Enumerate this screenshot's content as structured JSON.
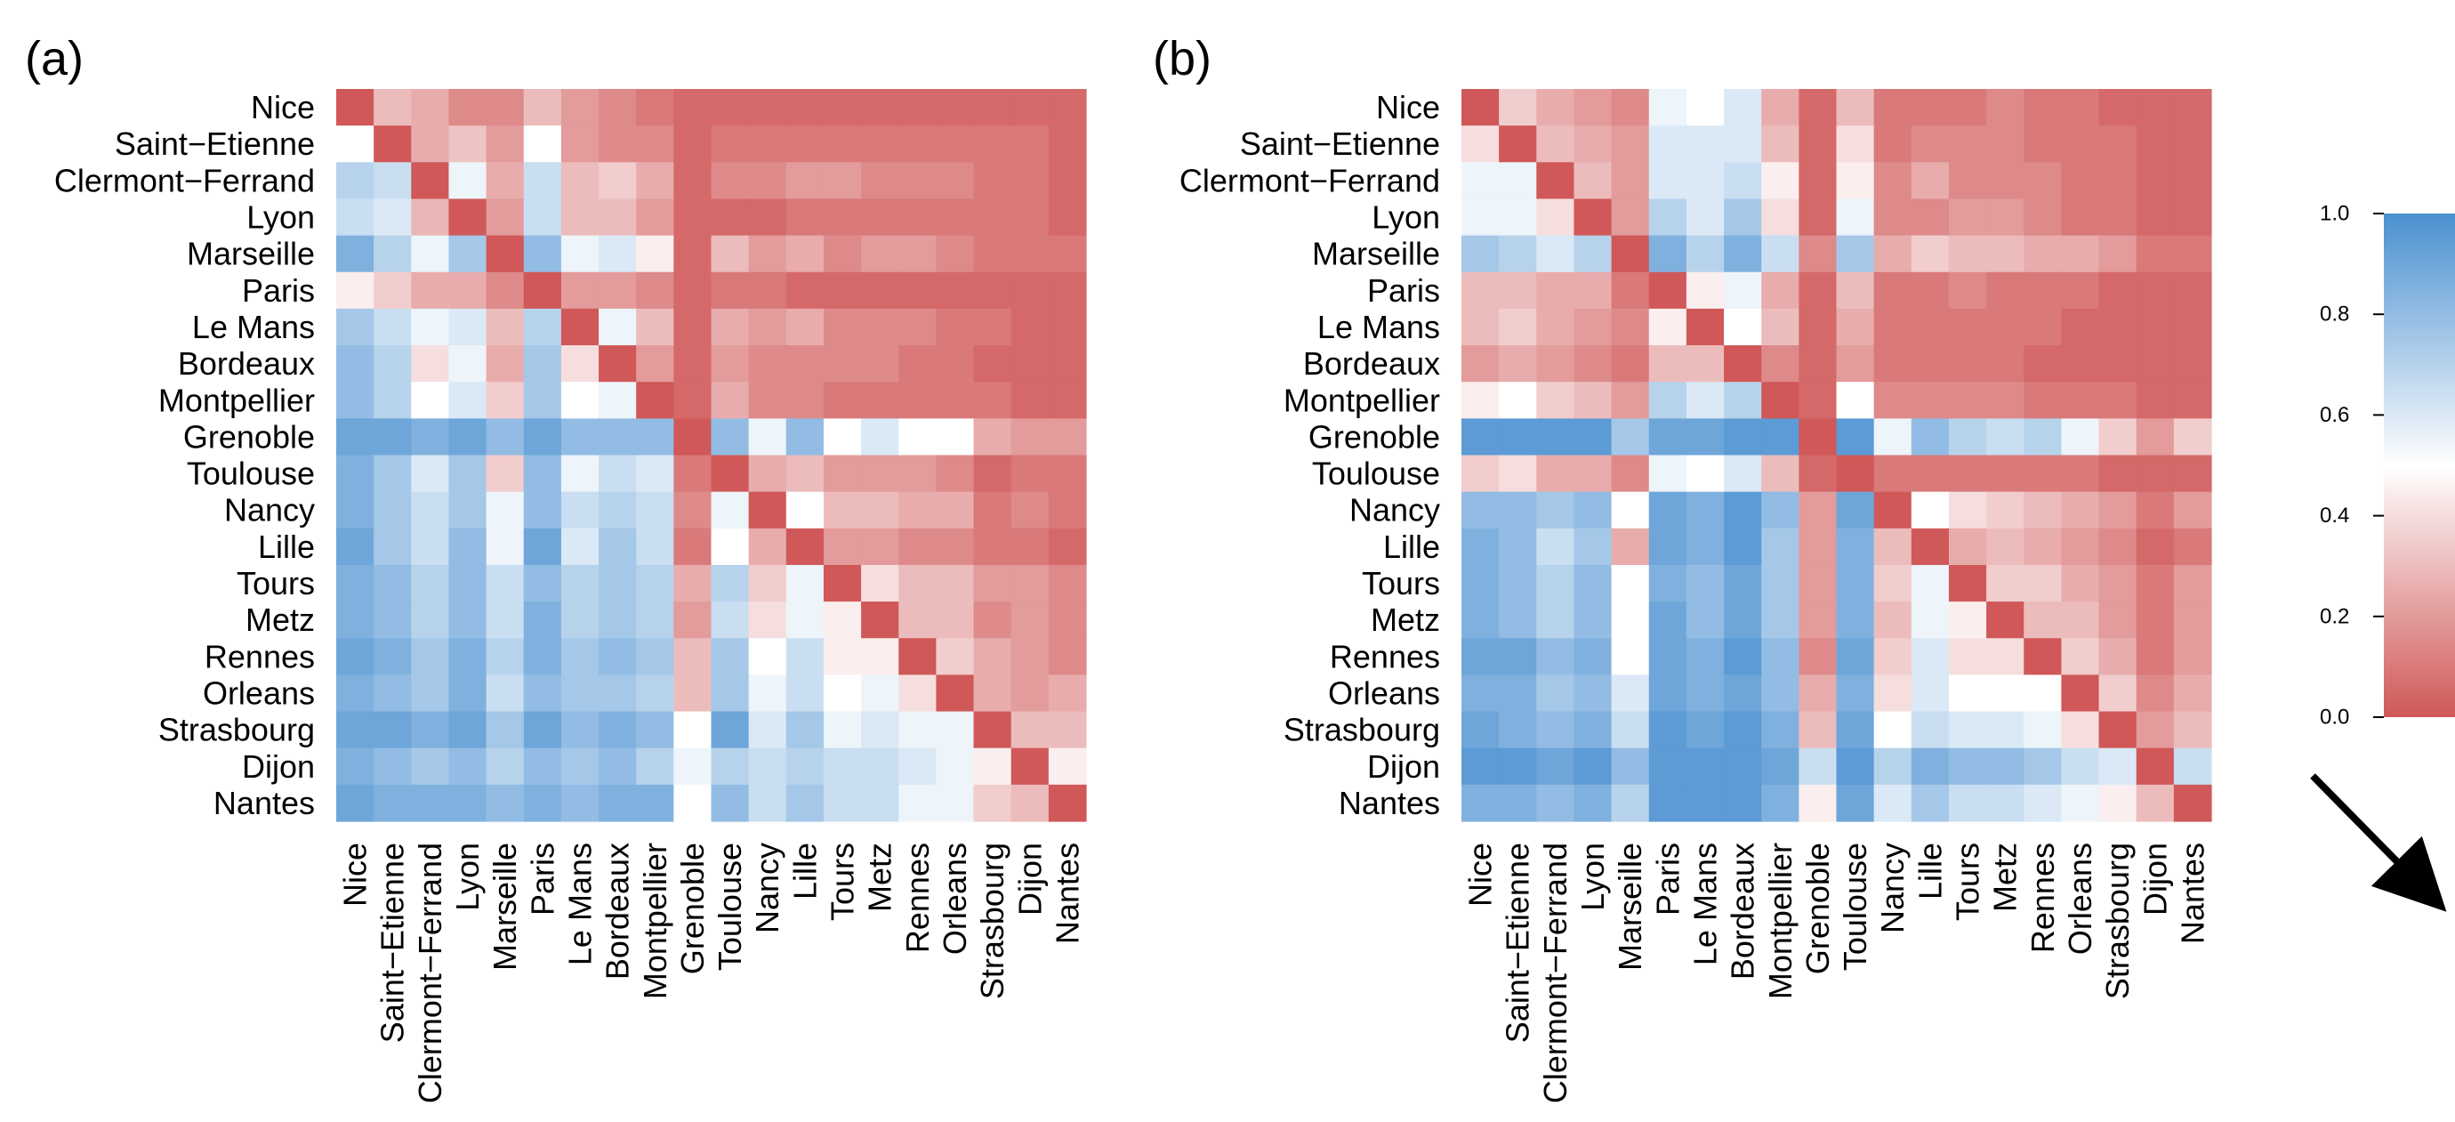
{
  "panels": [
    {
      "label": "(a)"
    },
    {
      "label": "(b)"
    }
  ],
  "colorbar": {
    "ticks": [
      "1.0",
      "0.8",
      "0.6",
      "0.4",
      "0.2",
      "0.0"
    ],
    "colors": {
      "high": "#4a90d0",
      "mid": "#ffffff",
      "low": "#d05858"
    }
  },
  "chart_data": [
    {
      "type": "heatmap",
      "title": "",
      "labels": [
        "Nice",
        "Saint−Etienne",
        "Clermont−Ferrand",
        "Lyon",
        "Marseille",
        "Paris",
        "Le Mans",
        "Bordeaux",
        "Montpellier",
        "Grenoble",
        "Toulouse",
        "Nancy",
        "Lille",
        "Tours",
        "Metz",
        "Rennes",
        "Orleans",
        "Strasbourg",
        "Dijon",
        "Nantes"
      ],
      "zlim": [
        0,
        1
      ],
      "values": [
        [
          0.0,
          0.3,
          0.25,
          0.15,
          0.15,
          0.3,
          0.2,
          0.15,
          0.1,
          0.05,
          0.05,
          0.05,
          0.05,
          0.05,
          0.05,
          0.05,
          0.05,
          0.05,
          0.05,
          0.05
        ],
        [
          0.5,
          0.0,
          0.25,
          0.32,
          0.2,
          0.5,
          0.2,
          0.15,
          0.15,
          0.05,
          0.1,
          0.1,
          0.1,
          0.1,
          0.1,
          0.1,
          0.1,
          0.1,
          0.1,
          0.05
        ],
        [
          0.7,
          0.65,
          0.0,
          0.55,
          0.25,
          0.65,
          0.3,
          0.35,
          0.25,
          0.05,
          0.15,
          0.15,
          0.2,
          0.2,
          0.15,
          0.15,
          0.15,
          0.1,
          0.1,
          0.05
        ],
        [
          0.65,
          0.6,
          0.28,
          0.0,
          0.2,
          0.65,
          0.3,
          0.3,
          0.2,
          0.05,
          0.05,
          0.05,
          0.1,
          0.1,
          0.1,
          0.1,
          0.1,
          0.1,
          0.1,
          0.05
        ],
        [
          0.85,
          0.7,
          0.55,
          0.75,
          0.0,
          0.8,
          0.55,
          0.6,
          0.45,
          0.05,
          0.3,
          0.2,
          0.25,
          0.15,
          0.2,
          0.2,
          0.15,
          0.1,
          0.1,
          0.1
        ],
        [
          0.45,
          0.35,
          0.25,
          0.25,
          0.15,
          0.0,
          0.2,
          0.2,
          0.15,
          0.05,
          0.1,
          0.1,
          0.05,
          0.05,
          0.05,
          0.05,
          0.05,
          0.05,
          0.05,
          0.05
        ],
        [
          0.75,
          0.65,
          0.55,
          0.6,
          0.3,
          0.7,
          0.0,
          0.55,
          0.3,
          0.05,
          0.25,
          0.2,
          0.25,
          0.15,
          0.15,
          0.15,
          0.1,
          0.1,
          0.05,
          0.05
        ],
        [
          0.8,
          0.7,
          0.4,
          0.55,
          0.25,
          0.75,
          0.4,
          0.0,
          0.2,
          0.05,
          0.2,
          0.15,
          0.15,
          0.15,
          0.15,
          0.1,
          0.1,
          0.05,
          0.05,
          0.05
        ],
        [
          0.8,
          0.7,
          0.5,
          0.6,
          0.35,
          0.75,
          0.5,
          0.55,
          0.0,
          0.05,
          0.25,
          0.15,
          0.15,
          0.1,
          0.1,
          0.1,
          0.1,
          0.1,
          0.05,
          0.05
        ],
        [
          0.9,
          0.9,
          0.85,
          0.9,
          0.8,
          0.9,
          0.8,
          0.8,
          0.8,
          0.0,
          0.8,
          0.55,
          0.8,
          0.5,
          0.6,
          0.5,
          0.5,
          0.25,
          0.2,
          0.2
        ],
        [
          0.85,
          0.75,
          0.6,
          0.75,
          0.35,
          0.8,
          0.55,
          0.65,
          0.6,
          0.1,
          0.0,
          0.25,
          0.3,
          0.2,
          0.2,
          0.2,
          0.15,
          0.05,
          0.1,
          0.1
        ],
        [
          0.85,
          0.75,
          0.65,
          0.75,
          0.55,
          0.8,
          0.65,
          0.7,
          0.65,
          0.15,
          0.55,
          0.0,
          0.5,
          0.3,
          0.3,
          0.25,
          0.25,
          0.1,
          0.15,
          0.1
        ],
        [
          0.9,
          0.75,
          0.65,
          0.8,
          0.55,
          0.9,
          0.6,
          0.75,
          0.65,
          0.1,
          0.5,
          0.25,
          0.0,
          0.2,
          0.2,
          0.15,
          0.15,
          0.1,
          0.1,
          0.05
        ],
        [
          0.85,
          0.8,
          0.7,
          0.8,
          0.65,
          0.8,
          0.7,
          0.75,
          0.7,
          0.25,
          0.7,
          0.35,
          0.55,
          0.0,
          0.4,
          0.3,
          0.3,
          0.2,
          0.2,
          0.15
        ],
        [
          0.85,
          0.8,
          0.7,
          0.8,
          0.65,
          0.85,
          0.7,
          0.75,
          0.7,
          0.2,
          0.65,
          0.4,
          0.55,
          0.45,
          0.0,
          0.3,
          0.3,
          0.15,
          0.2,
          0.15
        ],
        [
          0.9,
          0.85,
          0.75,
          0.85,
          0.7,
          0.85,
          0.75,
          0.8,
          0.75,
          0.3,
          0.75,
          0.5,
          0.65,
          0.45,
          0.45,
          0.0,
          0.35,
          0.25,
          0.2,
          0.15
        ],
        [
          0.85,
          0.8,
          0.75,
          0.85,
          0.65,
          0.8,
          0.75,
          0.75,
          0.7,
          0.3,
          0.75,
          0.55,
          0.65,
          0.5,
          0.55,
          0.4,
          0.0,
          0.25,
          0.2,
          0.25
        ],
        [
          0.9,
          0.9,
          0.85,
          0.9,
          0.75,
          0.9,
          0.8,
          0.85,
          0.8,
          0.5,
          0.9,
          0.6,
          0.75,
          0.55,
          0.6,
          0.55,
          0.55,
          0.0,
          0.3,
          0.3
        ],
        [
          0.85,
          0.8,
          0.75,
          0.8,
          0.7,
          0.8,
          0.75,
          0.8,
          0.7,
          0.55,
          0.7,
          0.65,
          0.7,
          0.65,
          0.65,
          0.6,
          0.55,
          0.45,
          0.0,
          0.45
        ],
        [
          0.9,
          0.85,
          0.85,
          0.85,
          0.8,
          0.85,
          0.8,
          0.85,
          0.85,
          0.5,
          0.8,
          0.65,
          0.75,
          0.65,
          0.65,
          0.55,
          0.55,
          0.35,
          0.3,
          0.0
        ]
      ]
    },
    {
      "type": "heatmap",
      "title": "",
      "labels": [
        "Nice",
        "Saint−Etienne",
        "Clermont−Ferrand",
        "Lyon",
        "Marseille",
        "Paris",
        "Le Mans",
        "Bordeaux",
        "Montpellier",
        "Grenoble",
        "Toulouse",
        "Nancy",
        "Lille",
        "Tours",
        "Metz",
        "Rennes",
        "Orleans",
        "Strasbourg",
        "Dijon",
        "Nantes"
      ],
      "zlim": [
        0,
        1
      ],
      "values": [
        [
          0.0,
          0.35,
          0.25,
          0.2,
          0.15,
          0.55,
          0.5,
          0.6,
          0.25,
          0.05,
          0.3,
          0.1,
          0.1,
          0.1,
          0.15,
          0.1,
          0.1,
          0.05,
          0.05,
          0.05
        ],
        [
          0.4,
          0.0,
          0.3,
          0.25,
          0.2,
          0.6,
          0.6,
          0.6,
          0.3,
          0.05,
          0.4,
          0.1,
          0.15,
          0.15,
          0.15,
          0.1,
          0.1,
          0.1,
          0.05,
          0.05
        ],
        [
          0.55,
          0.55,
          0.0,
          0.3,
          0.2,
          0.6,
          0.6,
          0.65,
          0.45,
          0.05,
          0.45,
          0.15,
          0.25,
          0.15,
          0.15,
          0.15,
          0.1,
          0.1,
          0.05,
          0.05
        ],
        [
          0.55,
          0.55,
          0.4,
          0.0,
          0.2,
          0.7,
          0.6,
          0.75,
          0.4,
          0.05,
          0.55,
          0.15,
          0.15,
          0.2,
          0.2,
          0.15,
          0.1,
          0.1,
          0.05,
          0.05
        ],
        [
          0.75,
          0.7,
          0.6,
          0.7,
          0.0,
          0.85,
          0.7,
          0.85,
          0.65,
          0.15,
          0.75,
          0.25,
          0.35,
          0.3,
          0.3,
          0.25,
          0.25,
          0.2,
          0.1,
          0.1
        ],
        [
          0.3,
          0.3,
          0.25,
          0.25,
          0.1,
          0.0,
          0.45,
          0.55,
          0.25,
          0.05,
          0.3,
          0.1,
          0.1,
          0.15,
          0.1,
          0.1,
          0.1,
          0.05,
          0.05,
          0.05
        ],
        [
          0.3,
          0.35,
          0.25,
          0.2,
          0.15,
          0.45,
          0.0,
          0.5,
          0.3,
          0.05,
          0.25,
          0.1,
          0.1,
          0.1,
          0.1,
          0.1,
          0.05,
          0.05,
          0.05,
          0.05
        ],
        [
          0.2,
          0.25,
          0.2,
          0.15,
          0.1,
          0.3,
          0.3,
          0.0,
          0.15,
          0.05,
          0.2,
          0.1,
          0.1,
          0.1,
          0.1,
          0.05,
          0.05,
          0.05,
          0.05,
          0.05
        ],
        [
          0.45,
          0.5,
          0.35,
          0.3,
          0.2,
          0.7,
          0.6,
          0.7,
          0.0,
          0.05,
          0.5,
          0.15,
          0.15,
          0.15,
          0.15,
          0.1,
          0.1,
          0.1,
          0.05,
          0.05
        ],
        [
          0.95,
          0.95,
          0.95,
          0.95,
          0.75,
          0.9,
          0.9,
          0.95,
          0.95,
          0.0,
          0.95,
          0.55,
          0.8,
          0.7,
          0.65,
          0.7,
          0.55,
          0.35,
          0.2,
          0.35
        ],
        [
          0.35,
          0.4,
          0.25,
          0.25,
          0.15,
          0.55,
          0.5,
          0.6,
          0.3,
          0.05,
          0.0,
          0.1,
          0.1,
          0.1,
          0.1,
          0.1,
          0.1,
          0.05,
          0.05,
          0.05
        ],
        [
          0.8,
          0.8,
          0.75,
          0.8,
          0.5,
          0.9,
          0.85,
          0.95,
          0.8,
          0.2,
          0.9,
          0.0,
          0.5,
          0.4,
          0.35,
          0.3,
          0.25,
          0.2,
          0.1,
          0.2
        ],
        [
          0.85,
          0.8,
          0.65,
          0.75,
          0.25,
          0.9,
          0.85,
          0.95,
          0.75,
          0.2,
          0.85,
          0.3,
          0.0,
          0.25,
          0.3,
          0.25,
          0.2,
          0.15,
          0.05,
          0.1
        ],
        [
          0.85,
          0.8,
          0.7,
          0.8,
          0.5,
          0.85,
          0.8,
          0.9,
          0.75,
          0.2,
          0.85,
          0.35,
          0.55,
          0.0,
          0.35,
          0.35,
          0.25,
          0.2,
          0.1,
          0.2
        ],
        [
          0.85,
          0.8,
          0.7,
          0.8,
          0.5,
          0.9,
          0.8,
          0.9,
          0.75,
          0.2,
          0.85,
          0.3,
          0.55,
          0.45,
          0.0,
          0.3,
          0.3,
          0.2,
          0.1,
          0.2
        ],
        [
          0.9,
          0.9,
          0.8,
          0.85,
          0.5,
          0.9,
          0.85,
          0.95,
          0.8,
          0.15,
          0.9,
          0.35,
          0.6,
          0.4,
          0.4,
          0.0,
          0.35,
          0.25,
          0.1,
          0.2
        ],
        [
          0.85,
          0.85,
          0.75,
          0.8,
          0.6,
          0.9,
          0.85,
          0.9,
          0.8,
          0.25,
          0.85,
          0.4,
          0.6,
          0.5,
          0.5,
          0.5,
          0.0,
          0.35,
          0.15,
          0.25
        ],
        [
          0.9,
          0.85,
          0.8,
          0.85,
          0.65,
          0.95,
          0.9,
          0.95,
          0.85,
          0.3,
          0.9,
          0.5,
          0.65,
          0.6,
          0.6,
          0.55,
          0.4,
          0.0,
          0.2,
          0.3
        ],
        [
          0.95,
          0.95,
          0.9,
          0.95,
          0.8,
          0.95,
          0.95,
          0.95,
          0.9,
          0.65,
          0.95,
          0.7,
          0.85,
          0.8,
          0.8,
          0.75,
          0.65,
          0.6,
          0.0,
          0.65
        ],
        [
          0.85,
          0.85,
          0.8,
          0.85,
          0.7,
          0.95,
          0.95,
          0.95,
          0.85,
          0.45,
          0.9,
          0.6,
          0.75,
          0.65,
          0.65,
          0.6,
          0.55,
          0.45,
          0.3,
          0.0
        ]
      ]
    }
  ]
}
